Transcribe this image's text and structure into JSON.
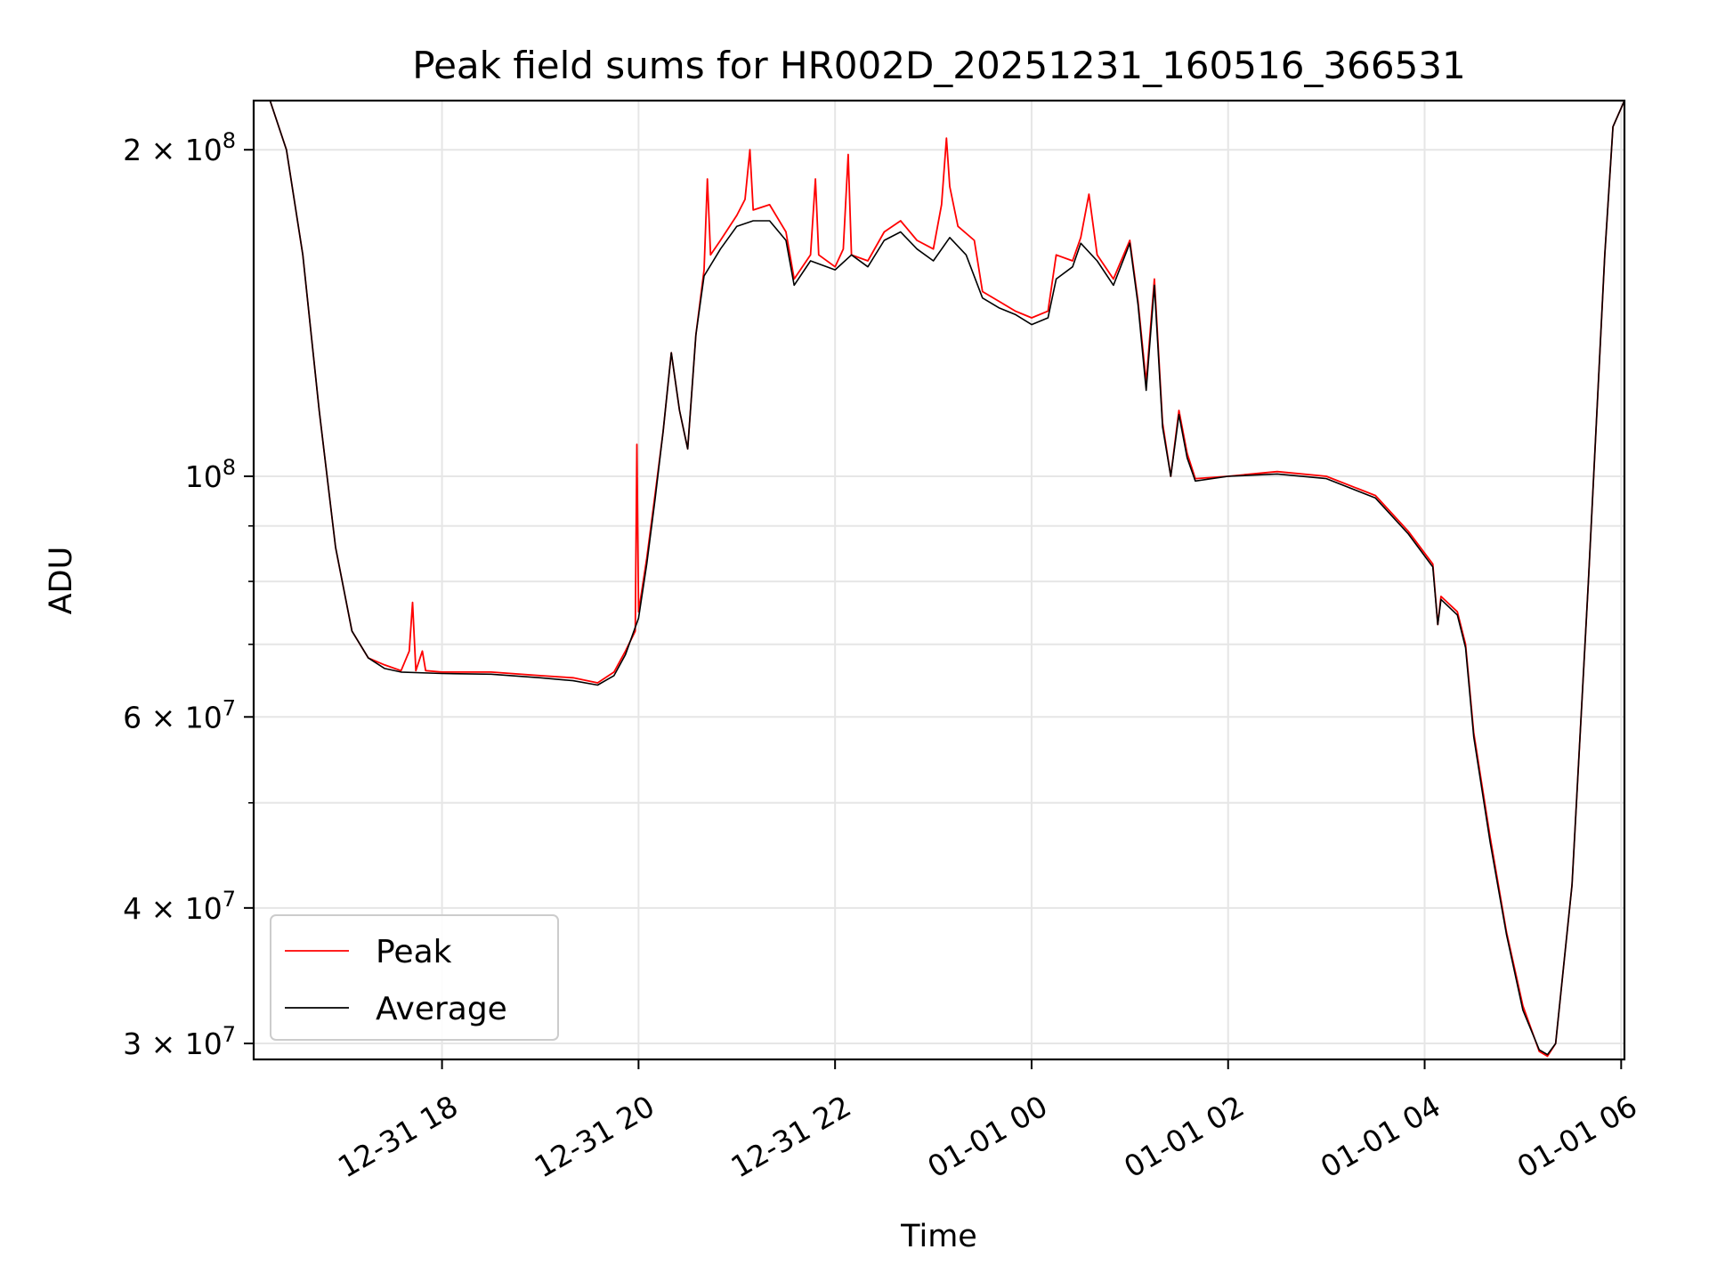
{
  "chart_data": {
    "type": "line",
    "title": "Peak field sums for HR002D_20251231_160516_366531",
    "xlabel": "Time",
    "ylabel": "ADU",
    "y_scale": "log",
    "ylim": [
      29000000,
      222000000
    ],
    "xlim": [
      "2025-12-31 16:05",
      "2026-01-01 06:02"
    ],
    "grid": true,
    "legend_placement": "lower-left",
    "x_ticks": [
      {
        "value": "2025-12-31 18:00",
        "label": "12-31 18"
      },
      {
        "value": "2025-12-31 20:00",
        "label": "12-31 20"
      },
      {
        "value": "2025-12-31 22:00",
        "label": "12-31 22"
      },
      {
        "value": "2026-01-01 00:00",
        "label": "01-01 00"
      },
      {
        "value": "2026-01-01 02:00",
        "label": "01-01 02"
      },
      {
        "value": "2026-01-01 04:00",
        "label": "01-01 04"
      },
      {
        "value": "2026-01-01 06:00",
        "label": "01-01 06"
      }
    ],
    "y_ticks": [
      {
        "value": 200000000,
        "mant": "2",
        "exp": "8"
      },
      {
        "value": 100000000,
        "mant": "",
        "exp": "8"
      },
      {
        "value": 60000000,
        "mant": "6",
        "exp": "7"
      },
      {
        "value": 40000000,
        "mant": "4",
        "exp": "7"
      },
      {
        "value": 30000000,
        "mant": "3",
        "exp": "7"
      }
    ],
    "y_minor_ticks": [
      50000000,
      70000000,
      80000000,
      90000000
    ],
    "series": [
      {
        "name": "Peak",
        "color": "#ff0000",
        "points": [
          [
            "2025-12-31 16:05",
            222000000.0
          ],
          [
            "2025-12-31 16:15",
            222000000.0
          ],
          [
            "2025-12-31 16:25",
            200000000.0
          ],
          [
            "2025-12-31 16:35",
            160000000.0
          ],
          [
            "2025-12-31 16:45",
            115000000.0
          ],
          [
            "2025-12-31 16:55",
            86000000.0
          ],
          [
            "2025-12-31 17:05",
            72000000.0
          ],
          [
            "2025-12-31 17:15",
            68000000.0
          ],
          [
            "2025-12-31 17:25",
            67000000.0
          ],
          [
            "2025-12-31 17:35",
            66200000.0
          ],
          [
            "2025-12-31 17:40",
            69000000.0
          ],
          [
            "2025-12-31 17:42",
            76500000.0
          ],
          [
            "2025-12-31 17:44",
            66200000.0
          ],
          [
            "2025-12-31 17:48",
            69000000.0
          ],
          [
            "2025-12-31 17:50",
            66200000.0
          ],
          [
            "2025-12-31 18:00",
            66000000.0
          ],
          [
            "2025-12-31 18:30",
            66000000.0
          ],
          [
            "2025-12-31 19:00",
            65500000.0
          ],
          [
            "2025-12-31 19:20",
            65200000.0
          ],
          [
            "2025-12-31 19:35",
            64500000.0
          ],
          [
            "2025-12-31 19:45",
            66000000.0
          ],
          [
            "2025-12-31 19:52",
            69000000.0
          ],
          [
            "2025-12-31 19:58",
            72000000.0
          ],
          [
            "2025-12-31 19:59",
            107000000.0
          ],
          [
            "2025-12-31 20:00",
            75000000.0
          ],
          [
            "2025-12-31 20:05",
            84000000.0
          ],
          [
            "2025-12-31 20:10",
            96000000.0
          ],
          [
            "2025-12-31 20:15",
            110000000.0
          ],
          [
            "2025-12-31 20:20",
            130000000.0
          ],
          [
            "2025-12-31 20:25",
            115000000.0
          ],
          [
            "2025-12-31 20:30",
            106000000.0
          ],
          [
            "2025-12-31 20:35",
            135000000.0
          ],
          [
            "2025-12-31 20:40",
            155000000.0
          ],
          [
            "2025-12-31 20:42",
            188000000.0
          ],
          [
            "2025-12-31 20:44",
            160000000.0
          ],
          [
            "2025-12-31 20:50",
            165000000.0
          ],
          [
            "2025-12-31 21:00",
            174000000.0
          ],
          [
            "2025-12-31 21:05",
            180000000.0
          ],
          [
            "2025-12-31 21:08",
            200000000.0
          ],
          [
            "2025-12-31 21:10",
            176000000.0
          ],
          [
            "2025-12-31 21:20",
            178000000.0
          ],
          [
            "2025-12-31 21:30",
            168000000.0
          ],
          [
            "2025-12-31 21:35",
            152000000.0
          ],
          [
            "2025-12-31 21:45",
            160000000.0
          ],
          [
            "2025-12-31 21:48",
            188000000.0
          ],
          [
            "2025-12-31 21:50",
            160000000.0
          ],
          [
            "2025-12-31 22:00",
            156000000.0
          ],
          [
            "2025-12-31 22:05",
            162000000.0
          ],
          [
            "2025-12-31 22:08",
            198000000.0
          ],
          [
            "2025-12-31 22:10",
            160000000.0
          ],
          [
            "2025-12-31 22:20",
            158000000.0
          ],
          [
            "2025-12-31 22:30",
            168000000.0
          ],
          [
            "2025-12-31 22:40",
            172000000.0
          ],
          [
            "2025-12-31 22:50",
            165000000.0
          ],
          [
            "2025-12-31 23:00",
            162000000.0
          ],
          [
            "2025-12-31 23:05",
            178000000.0
          ],
          [
            "2025-12-31 23:08",
            205000000.0
          ],
          [
            "2025-12-31 23:10",
            185000000.0
          ],
          [
            "2025-12-31 23:15",
            170000000.0
          ],
          [
            "2025-12-31 23:25",
            165000000.0
          ],
          [
            "2025-12-31 23:30",
            148000000.0
          ],
          [
            "2025-12-31 23:40",
            145000000.0
          ],
          [
            "2025-12-31 23:50",
            142000000.0
          ],
          [
            "2026-01-01 00:00",
            140000000.0
          ],
          [
            "2026-01-01 00:10",
            142000000.0
          ],
          [
            "2026-01-01 00:15",
            160000000.0
          ],
          [
            "2026-01-01 00:25",
            158000000.0
          ],
          [
            "2026-01-01 00:30",
            166000000.0
          ],
          [
            "2026-01-01 00:35",
            182000000.0
          ],
          [
            "2026-01-01 00:40",
            160000000.0
          ],
          [
            "2026-01-01 00:50",
            152000000.0
          ],
          [
            "2026-01-01 01:00",
            165000000.0
          ],
          [
            "2026-01-01 01:05",
            145000000.0
          ],
          [
            "2026-01-01 01:10",
            122000000.0
          ],
          [
            "2026-01-01 01:15",
            152000000.0
          ],
          [
            "2026-01-01 01:20",
            112000000.0
          ],
          [
            "2026-01-01 01:25",
            100000000.0
          ],
          [
            "2026-01-01 01:30",
            115000000.0
          ],
          [
            "2026-01-01 01:35",
            105000000.0
          ],
          [
            "2026-01-01 01:40",
            99500000.0
          ],
          [
            "2026-01-01 02:00",
            100000000.0
          ],
          [
            "2026-01-01 02:30",
            101000000.0
          ],
          [
            "2026-01-01 03:00",
            100000000.0
          ],
          [
            "2026-01-01 03:30",
            96000000.0
          ],
          [
            "2026-01-01 03:50",
            89000000.0
          ],
          [
            "2026-01-01 04:05",
            83000000.0
          ],
          [
            "2026-01-01 04:08",
            73000000.0
          ],
          [
            "2026-01-01 04:10",
            77500000.0
          ],
          [
            "2026-01-01 04:20",
            75000000.0
          ],
          [
            "2026-01-01 04:25",
            70000000.0
          ],
          [
            "2026-01-01 04:30",
            58000000.0
          ],
          [
            "2026-01-01 04:40",
            46500000.0
          ],
          [
            "2026-01-01 04:50",
            38000000.0
          ],
          [
            "2026-01-01 05:00",
            32500000.0
          ],
          [
            "2026-01-01 05:10",
            29500000.0
          ],
          [
            "2026-01-01 05:15",
            29200000.0
          ],
          [
            "2026-01-01 05:20",
            30000000.0
          ],
          [
            "2026-01-01 05:30",
            42000000.0
          ],
          [
            "2026-01-01 05:40",
            80000000.0
          ],
          [
            "2026-01-01 05:50",
            160000000.0
          ],
          [
            "2026-01-01 05:55",
            210000000.0
          ],
          [
            "2026-01-01 06:02",
            222000000.0
          ]
        ]
      },
      {
        "name": "Average",
        "color": "#000000",
        "points": [
          [
            "2025-12-31 16:05",
            222000000.0
          ],
          [
            "2025-12-31 16:15",
            222000000.0
          ],
          [
            "2025-12-31 16:25",
            200000000.0
          ],
          [
            "2025-12-31 16:35",
            160000000.0
          ],
          [
            "2025-12-31 16:45",
            115000000.0
          ],
          [
            "2025-12-31 16:55",
            86000000.0
          ],
          [
            "2025-12-31 17:05",
            72000000.0
          ],
          [
            "2025-12-31 17:15",
            68000000.0
          ],
          [
            "2025-12-31 17:25",
            66500000.0
          ],
          [
            "2025-12-31 17:35",
            66000000.0
          ],
          [
            "2025-12-31 18:00",
            65800000.0
          ],
          [
            "2025-12-31 18:30",
            65700000.0
          ],
          [
            "2025-12-31 19:00",
            65200000.0
          ],
          [
            "2025-12-31 19:20",
            64800000.0
          ],
          [
            "2025-12-31 19:35",
            64200000.0
          ],
          [
            "2025-12-31 19:45",
            65500000.0
          ],
          [
            "2025-12-31 19:52",
            68500000.0
          ],
          [
            "2025-12-31 20:00",
            74000000.0
          ],
          [
            "2025-12-31 20:05",
            83000000.0
          ],
          [
            "2025-12-31 20:10",
            95000000.0
          ],
          [
            "2025-12-31 20:15",
            110000000.0
          ],
          [
            "2025-12-31 20:20",
            130000000.0
          ],
          [
            "2025-12-31 20:25",
            115000000.0
          ],
          [
            "2025-12-31 20:30",
            106000000.0
          ],
          [
            "2025-12-31 20:35",
            135000000.0
          ],
          [
            "2025-12-31 20:40",
            153000000.0
          ],
          [
            "2025-12-31 20:50",
            162000000.0
          ],
          [
            "2025-12-31 21:00",
            170000000.0
          ],
          [
            "2025-12-31 21:10",
            172000000.0
          ],
          [
            "2025-12-31 21:20",
            172000000.0
          ],
          [
            "2025-12-31 21:30",
            165000000.0
          ],
          [
            "2025-12-31 21:35",
            150000000.0
          ],
          [
            "2025-12-31 21:45",
            158000000.0
          ],
          [
            "2025-12-31 22:00",
            155000000.0
          ],
          [
            "2025-12-31 22:10",
            160000000.0
          ],
          [
            "2025-12-31 22:20",
            156000000.0
          ],
          [
            "2025-12-31 22:30",
            165000000.0
          ],
          [
            "2025-12-31 22:40",
            168000000.0
          ],
          [
            "2025-12-31 22:50",
            162000000.0
          ],
          [
            "2025-12-31 23:00",
            158000000.0
          ],
          [
            "2025-12-31 23:10",
            166000000.0
          ],
          [
            "2025-12-31 23:20",
            160000000.0
          ],
          [
            "2025-12-31 23:30",
            146000000.0
          ],
          [
            "2025-12-31 23:40",
            143000000.0
          ],
          [
            "2025-12-31 23:50",
            141000000.0
          ],
          [
            "2026-01-01 00:00",
            138000000.0
          ],
          [
            "2026-01-01 00:10",
            140000000.0
          ],
          [
            "2026-01-01 00:15",
            152000000.0
          ],
          [
            "2026-01-01 00:25",
            156000000.0
          ],
          [
            "2026-01-01 00:30",
            164000000.0
          ],
          [
            "2026-01-01 00:40",
            158000000.0
          ],
          [
            "2026-01-01 00:50",
            150000000.0
          ],
          [
            "2026-01-01 01:00",
            164000000.0
          ],
          [
            "2026-01-01 01:05",
            144000000.0
          ],
          [
            "2026-01-01 01:10",
            120000000.0
          ],
          [
            "2026-01-01 01:15",
            150000000.0
          ],
          [
            "2026-01-01 01:20",
            111000000.0
          ],
          [
            "2026-01-01 01:25",
            100000000.0
          ],
          [
            "2026-01-01 01:30",
            114000000.0
          ],
          [
            "2026-01-01 01:35",
            104000000.0
          ],
          [
            "2026-01-01 01:40",
            99000000.0
          ],
          [
            "2026-01-01 02:00",
            100000000.0
          ],
          [
            "2026-01-01 02:30",
            100500000.0
          ],
          [
            "2026-01-01 03:00",
            99500000.0
          ],
          [
            "2026-01-01 03:30",
            95500000.0
          ],
          [
            "2026-01-01 03:50",
            88500000.0
          ],
          [
            "2026-01-01 04:05",
            82500000.0
          ],
          [
            "2026-01-01 04:08",
            73000000.0
          ],
          [
            "2026-01-01 04:10",
            77000000.0
          ],
          [
            "2026-01-01 04:20",
            74500000.0
          ],
          [
            "2026-01-01 04:25",
            69500000.0
          ],
          [
            "2026-01-01 04:30",
            57500000.0
          ],
          [
            "2026-01-01 04:40",
            46000000.0
          ],
          [
            "2026-01-01 04:50",
            37800000.0
          ],
          [
            "2026-01-01 05:00",
            32200000.0
          ],
          [
            "2026-01-01 05:10",
            29600000.0
          ],
          [
            "2026-01-01 05:15",
            29300000.0
          ],
          [
            "2026-01-01 05:20",
            30000000.0
          ],
          [
            "2026-01-01 05:30",
            42000000.0
          ],
          [
            "2026-01-01 05:40",
            80000000.0
          ],
          [
            "2026-01-01 05:50",
            160000000.0
          ],
          [
            "2026-01-01 05:55",
            210000000.0
          ],
          [
            "2026-01-01 06:02",
            222000000.0
          ]
        ]
      }
    ]
  }
}
